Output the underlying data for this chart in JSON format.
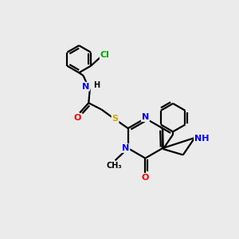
{
  "bg_color": "#ebebeb",
  "atom_colors": {
    "C": "#000000",
    "N": "#0000ff",
    "O": "#ff0000",
    "S": "#ccaa00",
    "Cl": "#00aa00",
    "H": "#000000"
  },
  "bond_color": "#000000",
  "bond_width": 1.6,
  "figsize": [
    3.0,
    3.0
  ],
  "dpi": 100
}
